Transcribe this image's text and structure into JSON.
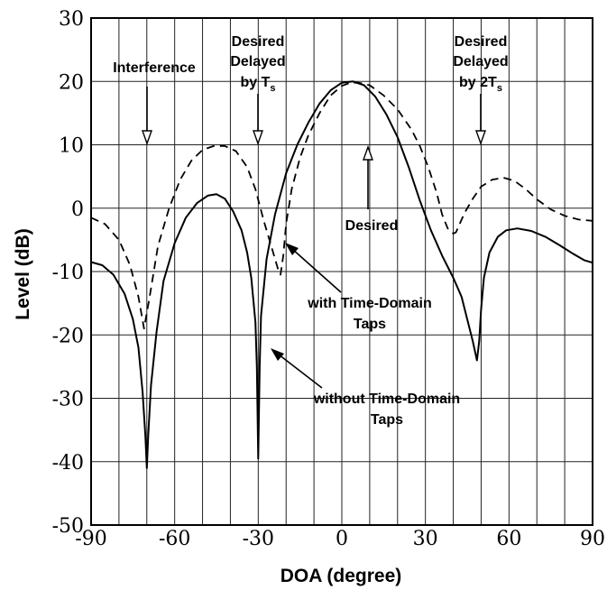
{
  "chart_data": {
    "type": "line",
    "xlabel": "DOA (degree)",
    "ylabel": "Level (dB)",
    "xlim": [
      -90,
      90
    ],
    "ylim": [
      -50,
      30
    ],
    "xticks": [
      -90,
      -60,
      -30,
      0,
      30,
      60,
      90
    ],
    "yticks": [
      30,
      20,
      10,
      0,
      -10,
      -20,
      -30,
      -40,
      -50
    ],
    "grid": true,
    "series": [
      {
        "style": "dashed",
        "x": [
          -90,
          -85,
          -80,
          -76,
          -73,
          -71,
          -69,
          -66,
          -62,
          -58,
          -54,
          -50,
          -46,
          -42,
          -38,
          -34,
          -31,
          -28,
          -25,
          -23,
          -22,
          -21,
          -20,
          -18,
          -15,
          -12,
          -8,
          -4,
          0,
          3,
          6,
          10,
          15,
          20,
          25,
          28,
          31,
          34,
          36,
          38,
          40,
          41,
          42,
          44,
          47,
          50,
          54,
          58,
          62,
          66,
          70,
          75,
          80,
          85,
          90
        ],
        "y": [
          -1.5,
          -2.5,
          -5,
          -9,
          -14,
          -19,
          -14,
          -6,
          0,
          4.5,
          7.5,
          9.2,
          9.8,
          9.8,
          9,
          6.5,
          3,
          -2,
          -6.5,
          -9.5,
          -10.5,
          -7.5,
          -2.5,
          3,
          8,
          11.5,
          15,
          17.8,
          19.3,
          19.8,
          19.8,
          19.4,
          17.8,
          15.6,
          12.4,
          9.8,
          6.5,
          2.5,
          -1,
          -3.2,
          -4,
          -3.8,
          -2.8,
          -0.8,
          1.5,
          3.4,
          4.5,
          4.8,
          4.3,
          3,
          1.4,
          -0.2,
          -1.2,
          -1.8,
          -2
        ]
      },
      {
        "style": "solid",
        "x": [
          -90,
          -86,
          -82,
          -78,
          -75,
          -73,
          -71.5,
          -70.5,
          -70,
          -69.5,
          -68.5,
          -66.5,
          -64,
          -60,
          -56,
          -52,
          -48,
          -45,
          -42,
          -39,
          -36,
          -34,
          -32.5,
          -31,
          -30.5,
          -30,
          -29.5,
          -29,
          -27,
          -24,
          -20,
          -16,
          -12,
          -8,
          -4,
          0,
          4,
          8,
          12,
          16,
          20,
          24,
          28,
          32,
          36,
          40,
          43,
          45,
          47,
          48.5,
          49.3,
          50,
          51,
          53,
          56,
          59,
          63,
          68,
          73,
          78,
          83,
          87,
          90
        ],
        "y": [
          -8.5,
          -9,
          -10.5,
          -13.5,
          -17.5,
          -22,
          -29,
          -36,
          -41,
          -36,
          -28,
          -19.5,
          -11.5,
          -5.5,
          -1.5,
          0.8,
          2,
          2.2,
          1.5,
          -0.5,
          -3.5,
          -7,
          -11,
          -18,
          -25,
          -39.5,
          -25,
          -17,
          -8,
          -1,
          5.5,
          10,
          13.5,
          16.5,
          18.6,
          19.8,
          20,
          19.4,
          17.6,
          14.8,
          11.2,
          6.5,
          1.2,
          -3.5,
          -7.5,
          -11,
          -14,
          -17.5,
          -21,
          -24,
          -21,
          -16,
          -11,
          -7,
          -4.5,
          -3.5,
          -3.2,
          -3.6,
          -4.5,
          -5.8,
          -7.2,
          -8.2,
          -8.6
        ]
      }
    ],
    "annotations": {
      "interference": "Interference",
      "desired_delayed_ts": [
        "Desired",
        "Delayed",
        "by T",
        "s"
      ],
      "desired_delayed_2ts": [
        "Desired",
        "Delayed",
        "by 2T",
        "s"
      ],
      "desired": "Desired",
      "with_taps": [
        "with Time-Domain",
        "Taps"
      ],
      "without_taps": [
        "without Time-Domain",
        "Taps"
      ]
    }
  }
}
